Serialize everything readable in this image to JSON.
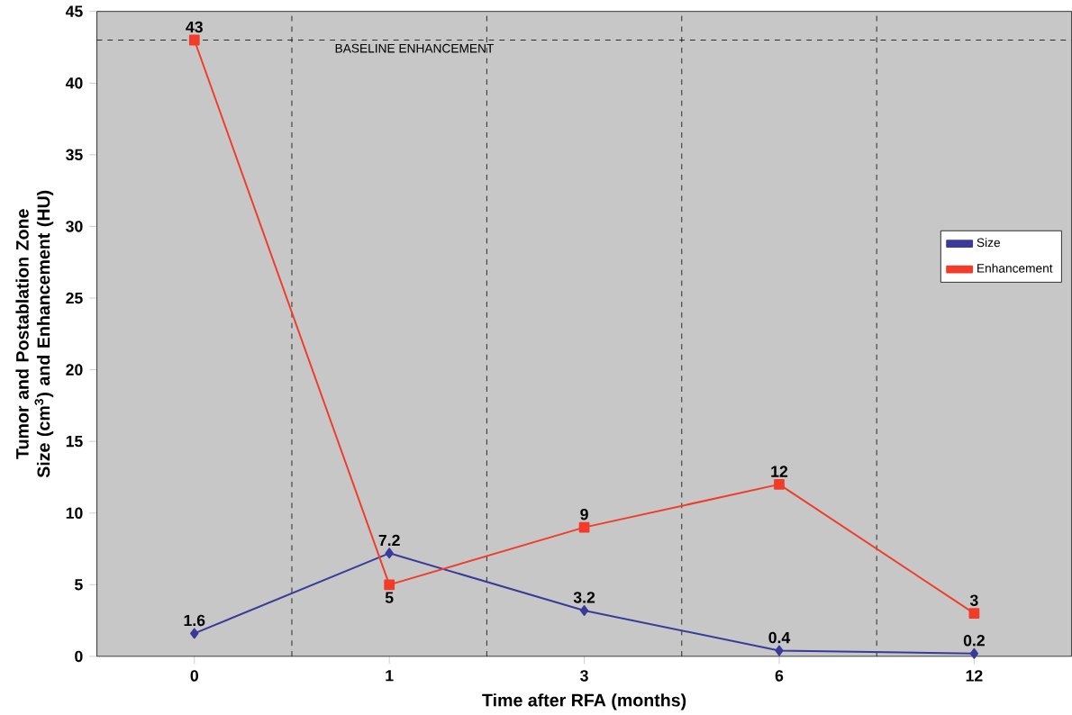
{
  "chart_data": {
    "type": "line",
    "xlabel": "Time after RFA (months)",
    "ylabel": "Tumor and Postablation Zone Size (cm$^{3}$) and Enhancement (HU)",
    "categories": [
      "0",
      "1",
      "3",
      "6",
      "12"
    ],
    "series": [
      {
        "name": "Size",
        "color": "#3a3a9a",
        "marker": "diamond",
        "values": [
          1.6,
          7.2,
          3.2,
          0.4,
          0.2
        ]
      },
      {
        "name": "Enhancement",
        "color": "#f03c28",
        "marker": "square",
        "values": [
          43,
          5,
          9,
          12,
          3
        ]
      }
    ],
    "ylim": [
      0,
      45
    ],
    "yticks": [
      0,
      5,
      10,
      15,
      20,
      25,
      30,
      35,
      40,
      45
    ],
    "ref_lines": [
      {
        "axis": "y",
        "value": 43,
        "label": "BASELINE ENHANCEMENT",
        "line_style": "dashed"
      }
    ],
    "grid": "x",
    "legend": "right",
    "data_labels": true,
    "line_style": "solid"
  }
}
